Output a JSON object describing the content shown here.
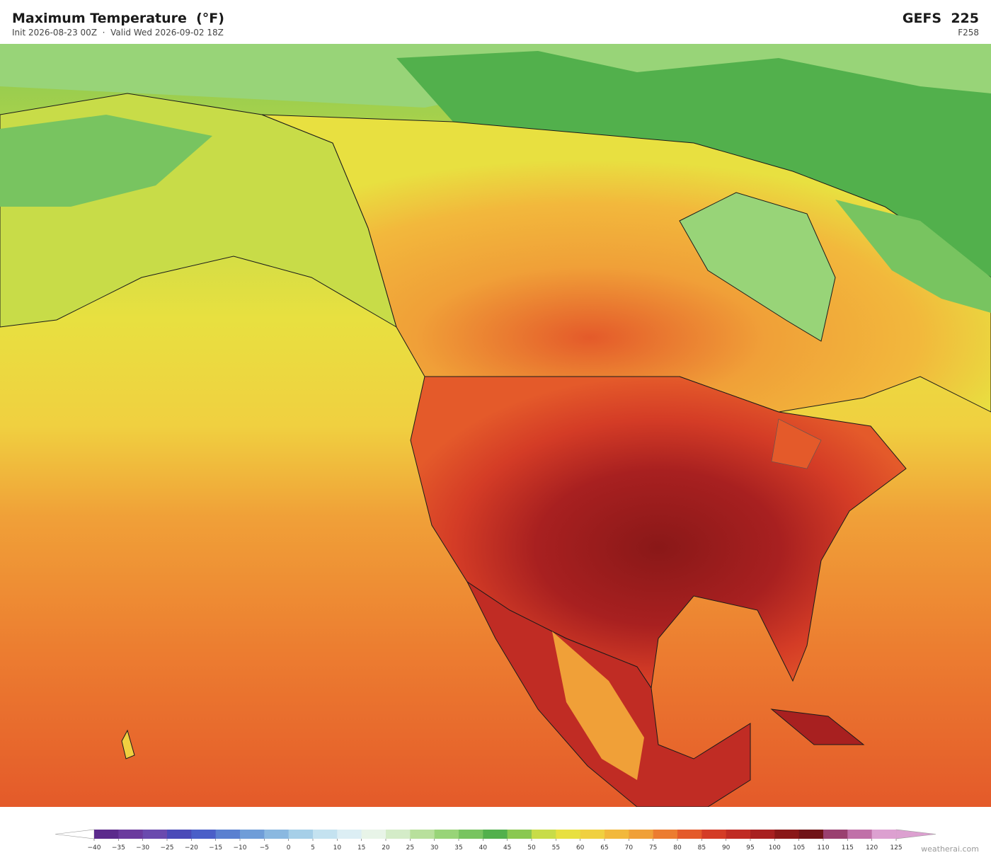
{
  "header": {
    "title": "Maximum Temperature  (°F)",
    "subtitle": "Init 2026-08-23 00Z  ·  Valid Wed 2026-09-02 18Z",
    "model": "GEFS  225",
    "forecast_hour": "F258"
  },
  "colorbar": {
    "ticks": [
      {
        "value": -40,
        "label": "−40"
      },
      {
        "value": -35,
        "label": "−35"
      },
      {
        "value": -30,
        "label": "−30"
      },
      {
        "value": -25,
        "label": "−25"
      },
      {
        "value": -20,
        "label": "−20"
      },
      {
        "value": -15,
        "label": "−15"
      },
      {
        "value": -10,
        "label": "−10"
      },
      {
        "value": -5,
        "label": "−5"
      },
      0,
      5,
      10,
      15,
      20,
      25,
      30,
      35,
      40,
      45,
      50,
      55,
      60,
      65,
      70,
      75,
      80,
      85,
      90,
      95,
      100,
      105,
      110,
      115,
      120,
      125
    ],
    "colors": [
      "#5b2a8c",
      "#6b3a9e",
      "#6a4aae",
      "#4a4ab8",
      "#4a5fc8",
      "#5a80d0",
      "#6f9dd8",
      "#8ab8e0",
      "#a6cfe8",
      "#c4e2f0",
      "#dceef4",
      "#e8f4e8",
      "#d4ecc8",
      "#b8e09c",
      "#98d478",
      "#78c460",
      "#52b04c",
      "#8ac850",
      "#c8dc48",
      "#e8e040",
      "#f0d040",
      "#f2b83c",
      "#f0a038",
      "#ec7c30",
      "#e45a2a",
      "#d43c26",
      "#c02c24",
      "#a82020",
      "#8a1818",
      "#701418",
      "#9a4070",
      "#c070a8",
      "#dca0d0"
    ],
    "under_color": "#ffffff",
    "over_color": "#dca0d0"
  },
  "watermark": "weatherai.com"
}
